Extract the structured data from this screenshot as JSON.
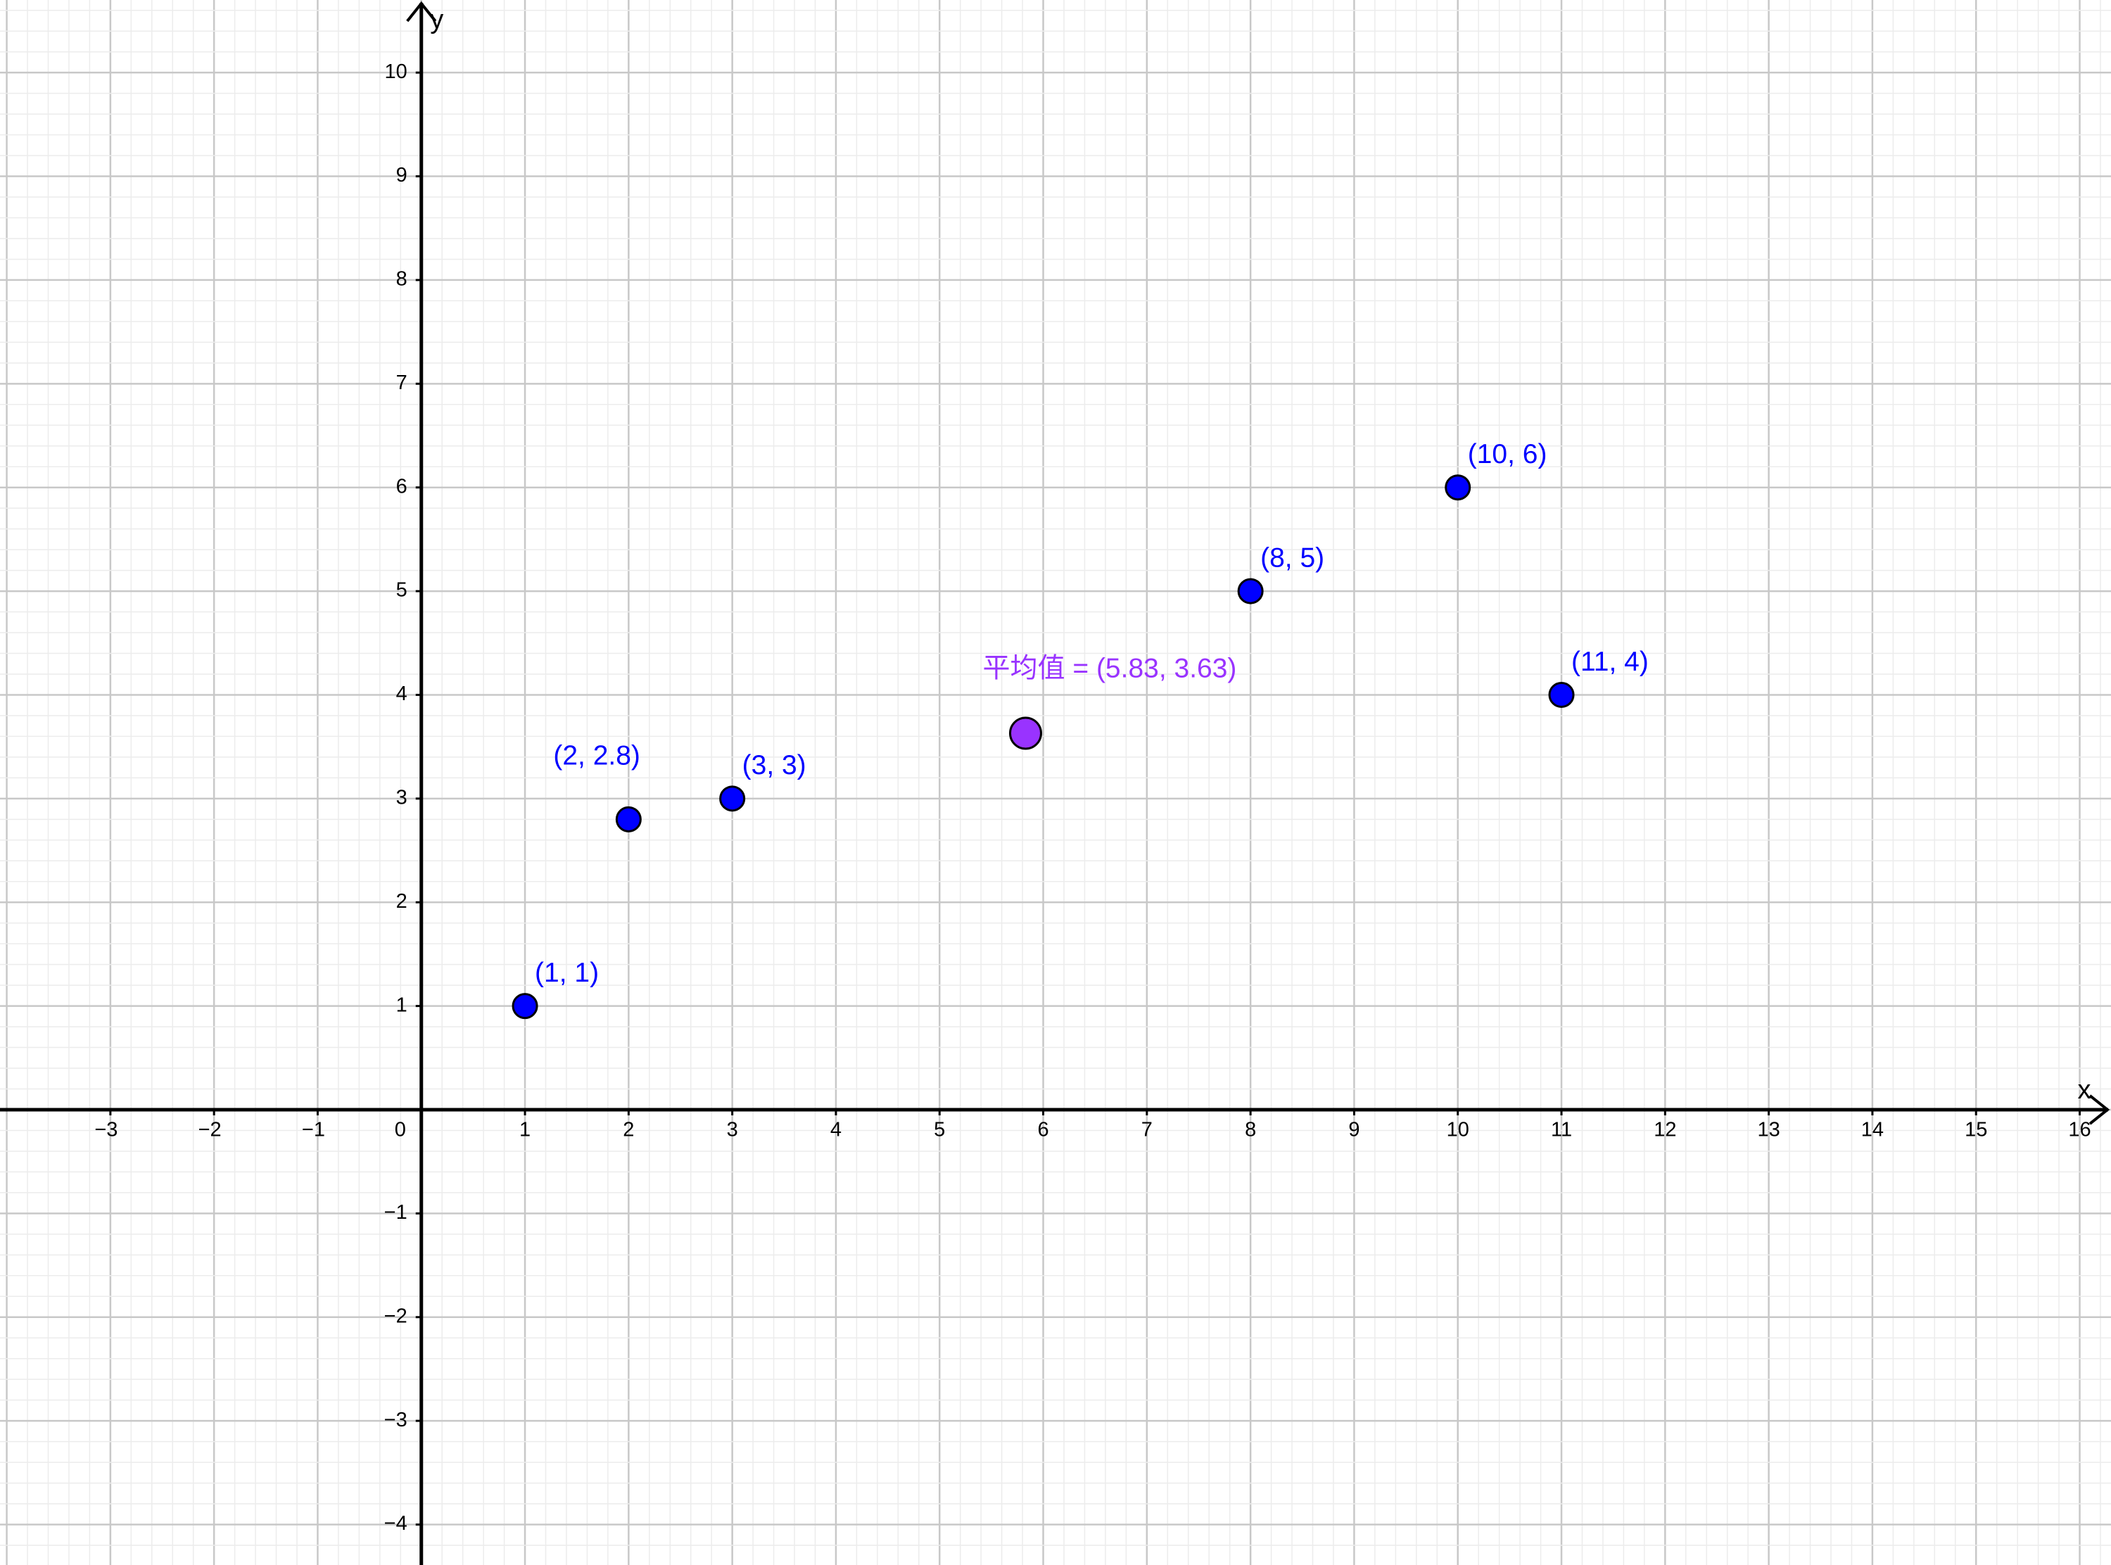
{
  "chart_data": {
    "type": "scatter",
    "xlabel": "x",
    "ylabel": "y",
    "xlim": [
      -4.065,
      16.302
    ],
    "ylim": [
      -4.39,
      10.7
    ],
    "xticks": [
      {
        "value": -3,
        "label": "−3"
      },
      {
        "value": -2,
        "label": "−2"
      },
      {
        "value": -1,
        "label": "−1"
      },
      0,
      1,
      2,
      3,
      4,
      5,
      6,
      7,
      8,
      9,
      10,
      11,
      12,
      13,
      14,
      15,
      16
    ],
    "yticks": [
      {
        "value": -4,
        "label": "−4"
      },
      {
        "value": -3,
        "label": "−3"
      },
      {
        "value": -2,
        "label": "−2"
      },
      {
        "value": -1,
        "label": "−1"
      },
      1,
      2,
      3,
      4,
      5,
      6,
      7,
      8,
      9,
      10
    ],
    "grid": true,
    "series": [
      {
        "color": "#0000ff",
        "x": [
          1,
          2,
          3,
          8,
          10,
          11
        ],
        "values": [
          1,
          2.8,
          3,
          5,
          6,
          4
        ],
        "value_labels": [
          "(1, 1)",
          "(2, 2.8)",
          "(3, 3)",
          "(8, 5)",
          "(10, 6)",
          "(11, 4)"
        ]
      },
      {
        "color": "#9933ff",
        "x": [
          5.83
        ],
        "values": [
          3.63
        ],
        "value_labels": [
          "平均值 = (5.83, 3.63)"
        ]
      }
    ]
  }
}
